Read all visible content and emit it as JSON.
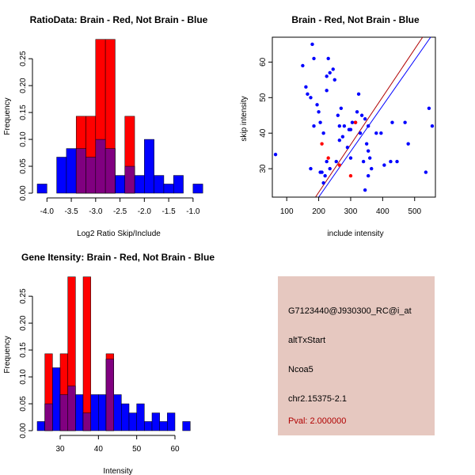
{
  "colors": {
    "red": "#ff0000",
    "blue": "#0000ff",
    "purple": "#800080",
    "dark_red": "#b00000",
    "panel_bg": "#e6c8c0",
    "pval": "#b00000"
  },
  "chart_data": [
    {
      "id": "ratio_hist",
      "type": "bar",
      "title": "RatioData: Brain - Red, Not Brain - Blue",
      "xlabel": "Log2 Ratio Skip/Include",
      "ylabel": "Frequency",
      "xlim": [
        -4.2,
        -0.9
      ],
      "ylim": [
        0,
        0.29
      ],
      "xticks": [
        -4.0,
        -3.5,
        -3.0,
        -2.5,
        -2.0,
        -1.5,
        -1.0
      ],
      "xtick_labels": [
        "-4.0",
        "-3.5",
        "-3.0",
        "-2.5",
        "-2.0",
        "-1.5",
        "-1.0"
      ],
      "yticks": [
        0.0,
        0.05,
        0.1,
        0.15,
        0.2,
        0.25
      ],
      "ytick_labels": [
        "0.00",
        "0.05",
        "0.10",
        "0.15",
        "0.20",
        "0.25"
      ],
      "bin_edges": [
        -4.2,
        -4.0,
        -3.8,
        -3.6,
        -3.4,
        -3.2,
        -3.0,
        -2.8,
        -2.6,
        -2.4,
        -2.2,
        -2.0,
        -1.8,
        -1.6,
        -1.4,
        -1.2,
        -1.0,
        -0.8
      ],
      "series": [
        {
          "name": "Brain",
          "color": "#ff0000",
          "values": [
            0,
            0,
            0,
            0,
            0.143,
            0.143,
            0.286,
            0.286,
            0,
            0.143,
            0,
            0,
            0,
            0,
            0,
            0,
            0
          ]
        },
        {
          "name": "Not Brain",
          "color": "#0000ff",
          "values": [
            0.017,
            0,
            0.067,
            0.083,
            0.083,
            0.067,
            0.1,
            0.083,
            0.033,
            0.05,
            0.033,
            0.1,
            0.033,
            0.017,
            0.033,
            0,
            0.017
          ]
        }
      ]
    },
    {
      "id": "scatter",
      "type": "scatter",
      "title": "Brain - Red, Not Brain - Blue",
      "xlabel": "include intensity",
      "ylabel": "skip intensity",
      "xlim": [
        55,
        565
      ],
      "ylim": [
        22,
        67
      ],
      "xticks": [
        100,
        200,
        300,
        400,
        500
      ],
      "xtick_labels": [
        "100",
        "200",
        "300",
        "400",
        "500"
      ],
      "yticks": [
        30,
        40,
        50,
        60
      ],
      "ytick_labels": [
        "30",
        "40",
        "50",
        "60"
      ],
      "series": [
        {
          "name": "Not Brain",
          "color": "#0000ff",
          "points": [
            [
              65,
              34
            ],
            [
              150,
              59
            ],
            [
              160,
              53
            ],
            [
              165,
              51
            ],
            [
              175,
              50
            ],
            [
              175,
              30
            ],
            [
              180,
              65
            ],
            [
              185,
              61
            ],
            [
              185,
              42
            ],
            [
              195,
              48
            ],
            [
              200,
              46
            ],
            [
              205,
              43
            ],
            [
              205,
              29
            ],
            [
              210,
              29
            ],
            [
              215,
              40
            ],
            [
              215,
              26
            ],
            [
              220,
              28
            ],
            [
              225,
              56
            ],
            [
              225,
              52
            ],
            [
              225,
              32
            ],
            [
              230,
              61
            ],
            [
              235,
              57
            ],
            [
              235,
              30
            ],
            [
              245,
              58
            ],
            [
              250,
              55
            ],
            [
              255,
              32
            ],
            [
              260,
              45
            ],
            [
              265,
              42
            ],
            [
              265,
              38
            ],
            [
              270,
              47
            ],
            [
              275,
              39
            ],
            [
              280,
              42
            ],
            [
              290,
              36
            ],
            [
              295,
              41
            ],
            [
              300,
              41
            ],
            [
              300,
              33
            ],
            [
              305,
              43
            ],
            [
              315,
              43
            ],
            [
              320,
              46
            ],
            [
              325,
              51
            ],
            [
              330,
              40
            ],
            [
              335,
              45
            ],
            [
              340,
              32
            ],
            [
              345,
              44
            ],
            [
              345,
              24
            ],
            [
              350,
              37
            ],
            [
              355,
              42
            ],
            [
              355,
              35
            ],
            [
              355,
              28
            ],
            [
              360,
              33
            ],
            [
              365,
              30
            ],
            [
              380,
              40
            ],
            [
              395,
              40
            ],
            [
              405,
              31
            ],
            [
              425,
              32
            ],
            [
              430,
              43
            ],
            [
              445,
              32
            ],
            [
              470,
              43
            ],
            [
              480,
              37
            ],
            [
              535,
              29
            ],
            [
              545,
              47
            ],
            [
              555,
              42
            ]
          ]
        },
        {
          "name": "Brain",
          "color": "#ff0000",
          "points": [
            [
              210,
              37
            ],
            [
              230,
              33
            ],
            [
              265,
              31
            ],
            [
              300,
              28
            ],
            [
              315,
              43
            ]
          ]
        }
      ],
      "fit_lines": [
        {
          "name": "Brain fit",
          "color": "#b00000",
          "from": [
            190,
            22
          ],
          "to": [
            525,
            67
          ]
        },
        {
          "name": "Not Brain fit",
          "color": "#0000ff",
          "from": [
            200,
            22
          ],
          "to": [
            550,
            67
          ]
        }
      ]
    },
    {
      "id": "gene_hist",
      "type": "bar",
      "title": "Gene Itensity: Brain - Red, Not Brain - Blue",
      "xlabel": "Intensity",
      "ylabel": "Frequency",
      "xlim": [
        24,
        66
      ],
      "ylim": [
        0,
        0.29
      ],
      "xticks": [
        30,
        40,
        50,
        60
      ],
      "xtick_labels": [
        "30",
        "40",
        "50",
        "60"
      ],
      "yticks": [
        0.0,
        0.05,
        0.1,
        0.15,
        0.2,
        0.25
      ],
      "ytick_labels": [
        "0.00",
        "0.05",
        "0.10",
        "0.15",
        "0.20",
        "0.25"
      ],
      "bin_edges": [
        24,
        26,
        28,
        30,
        32,
        34,
        36,
        38,
        40,
        42,
        44,
        46,
        48,
        50,
        52,
        54,
        56,
        58,
        60,
        62,
        64,
        66
      ],
      "series": [
        {
          "name": "Brain",
          "color": "#ff0000",
          "values": [
            0,
            0.143,
            0,
            0.143,
            0.286,
            0,
            0.286,
            0,
            0,
            0.143,
            0,
            0,
            0,
            0,
            0,
            0,
            0,
            0,
            0,
            0,
            0
          ]
        },
        {
          "name": "Not Brain",
          "color": "#0000ff",
          "values": [
            0.017,
            0.05,
            0.117,
            0.067,
            0.083,
            0.067,
            0.033,
            0.067,
            0.067,
            0.133,
            0.067,
            0.05,
            0.033,
            0.05,
            0.017,
            0.033,
            0.017,
            0.033,
            0,
            0.017,
            0
          ]
        }
      ]
    }
  ],
  "info_panel": {
    "probe_id": "G7123440@J930300_RC@i_at",
    "event_type": "altTxStart",
    "gene": "Ncoa5",
    "location": "chr2.15375-2.1",
    "pval": "Pval: 2.000000"
  }
}
